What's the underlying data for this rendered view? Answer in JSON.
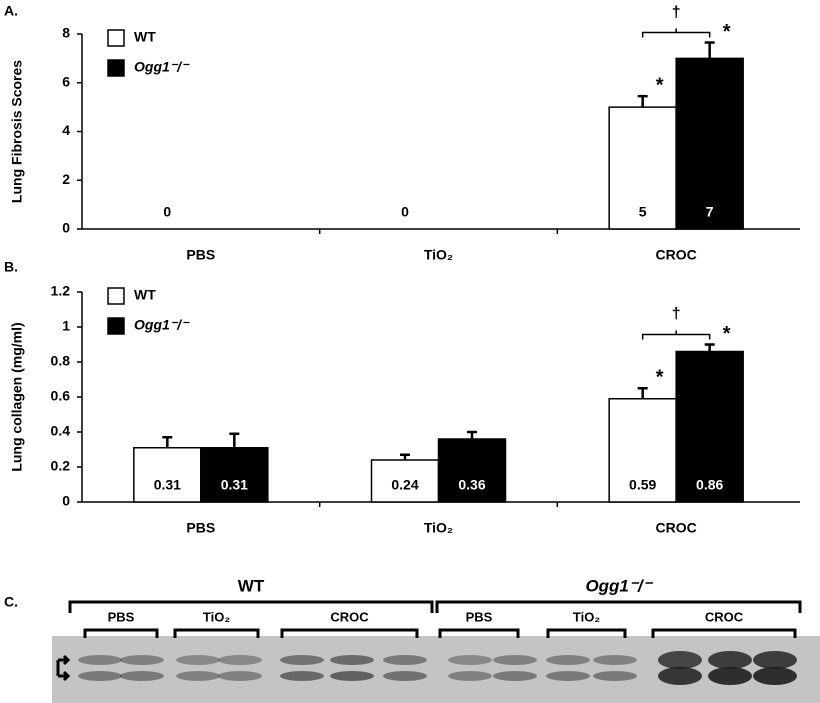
{
  "chart_data": [
    {
      "type": "bar",
      "panel": "A.",
      "y_label": "Lung Fibrosis Scores",
      "categories": [
        "PBS",
        "TiO₂",
        "CROC"
      ],
      "series": [
        {
          "name": "WT",
          "color": "#ffffff",
          "values": [
            0,
            0,
            5
          ],
          "errors": [
            0,
            0,
            0.45
          ]
        },
        {
          "name": "Ogg1⁻/⁻",
          "color": "#000000",
          "values": [
            0,
            0,
            7
          ],
          "errors": [
            0,
            0,
            0.65
          ]
        }
      ],
      "ylim": [
        0,
        8
      ],
      "yticks": [
        0,
        2,
        4,
        6,
        8
      ],
      "legend": "upper left",
      "annotations": {
        "significant_vs_control": "*",
        "significant_between_strains": "†"
      }
    },
    {
      "type": "bar",
      "panel": "B.",
      "y_label": "Lung collagen (mg/ml)",
      "categories": [
        "PBS",
        "TiO₂",
        "CROC"
      ],
      "series": [
        {
          "name": "WT",
          "color": "#ffffff",
          "values": [
            0.31,
            0.24,
            0.59
          ],
          "errors": [
            0.06,
            0.03,
            0.06
          ]
        },
        {
          "name": "Ogg1⁻/⁻",
          "color": "#000000",
          "values": [
            0.31,
            0.36,
            0.86
          ],
          "errors": [
            0.08,
            0.04,
            0.04
          ]
        }
      ],
      "ylim": [
        0,
        1.2
      ],
      "yticks": [
        0,
        0.2,
        0.4,
        0.6,
        0.8,
        1,
        1.2
      ],
      "legend": "upper left",
      "annotations": {
        "significant_vs_control": "*",
        "significant_between_strains": "†"
      }
    }
  ],
  "blot": {
    "panel": "C.",
    "groups": [
      {
        "name": "WT",
        "treatments": [
          "PBS",
          "TiO₂",
          "CROC"
        ]
      },
      {
        "name": "Ogg1⁻/⁻",
        "treatments": [
          "PBS",
          "TiO₂",
          "CROC"
        ]
      }
    ]
  }
}
